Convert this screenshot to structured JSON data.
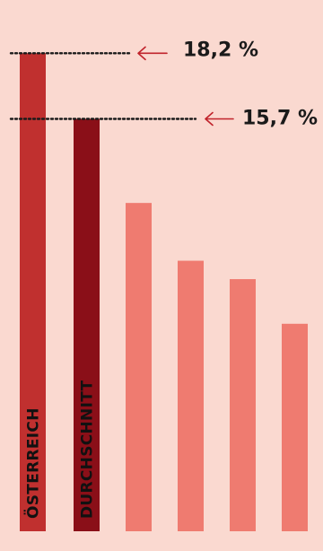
{
  "colors": {
    "background": "#fad9d0",
    "highlight_bar": "#c0302f",
    "average_bar": "#8a0f18",
    "other_bars": "#ef7b70",
    "arrow": "#c0232b"
  },
  "chart_data": {
    "type": "bar",
    "title": "",
    "xlabel": "",
    "ylabel": "",
    "grid": false,
    "legend": "none",
    "categories": [
      "ÖSTERREICH",
      "DURCHSCHNITT",
      "",
      "",
      "",
      ""
    ],
    "values": [
      18.2,
      15.7,
      12.5,
      10.3,
      9.6,
      7.9
    ],
    "ylim": [
      0,
      19.1
    ],
    "bar_colors": [
      "highlight_bar",
      "average_bar",
      "other_bars",
      "other_bars",
      "other_bars",
      "other_bars"
    ],
    "callouts": [
      {
        "bar": 0,
        "label": "18,2 %"
      },
      {
        "bar": 1,
        "label": "15,7 %"
      }
    ]
  }
}
